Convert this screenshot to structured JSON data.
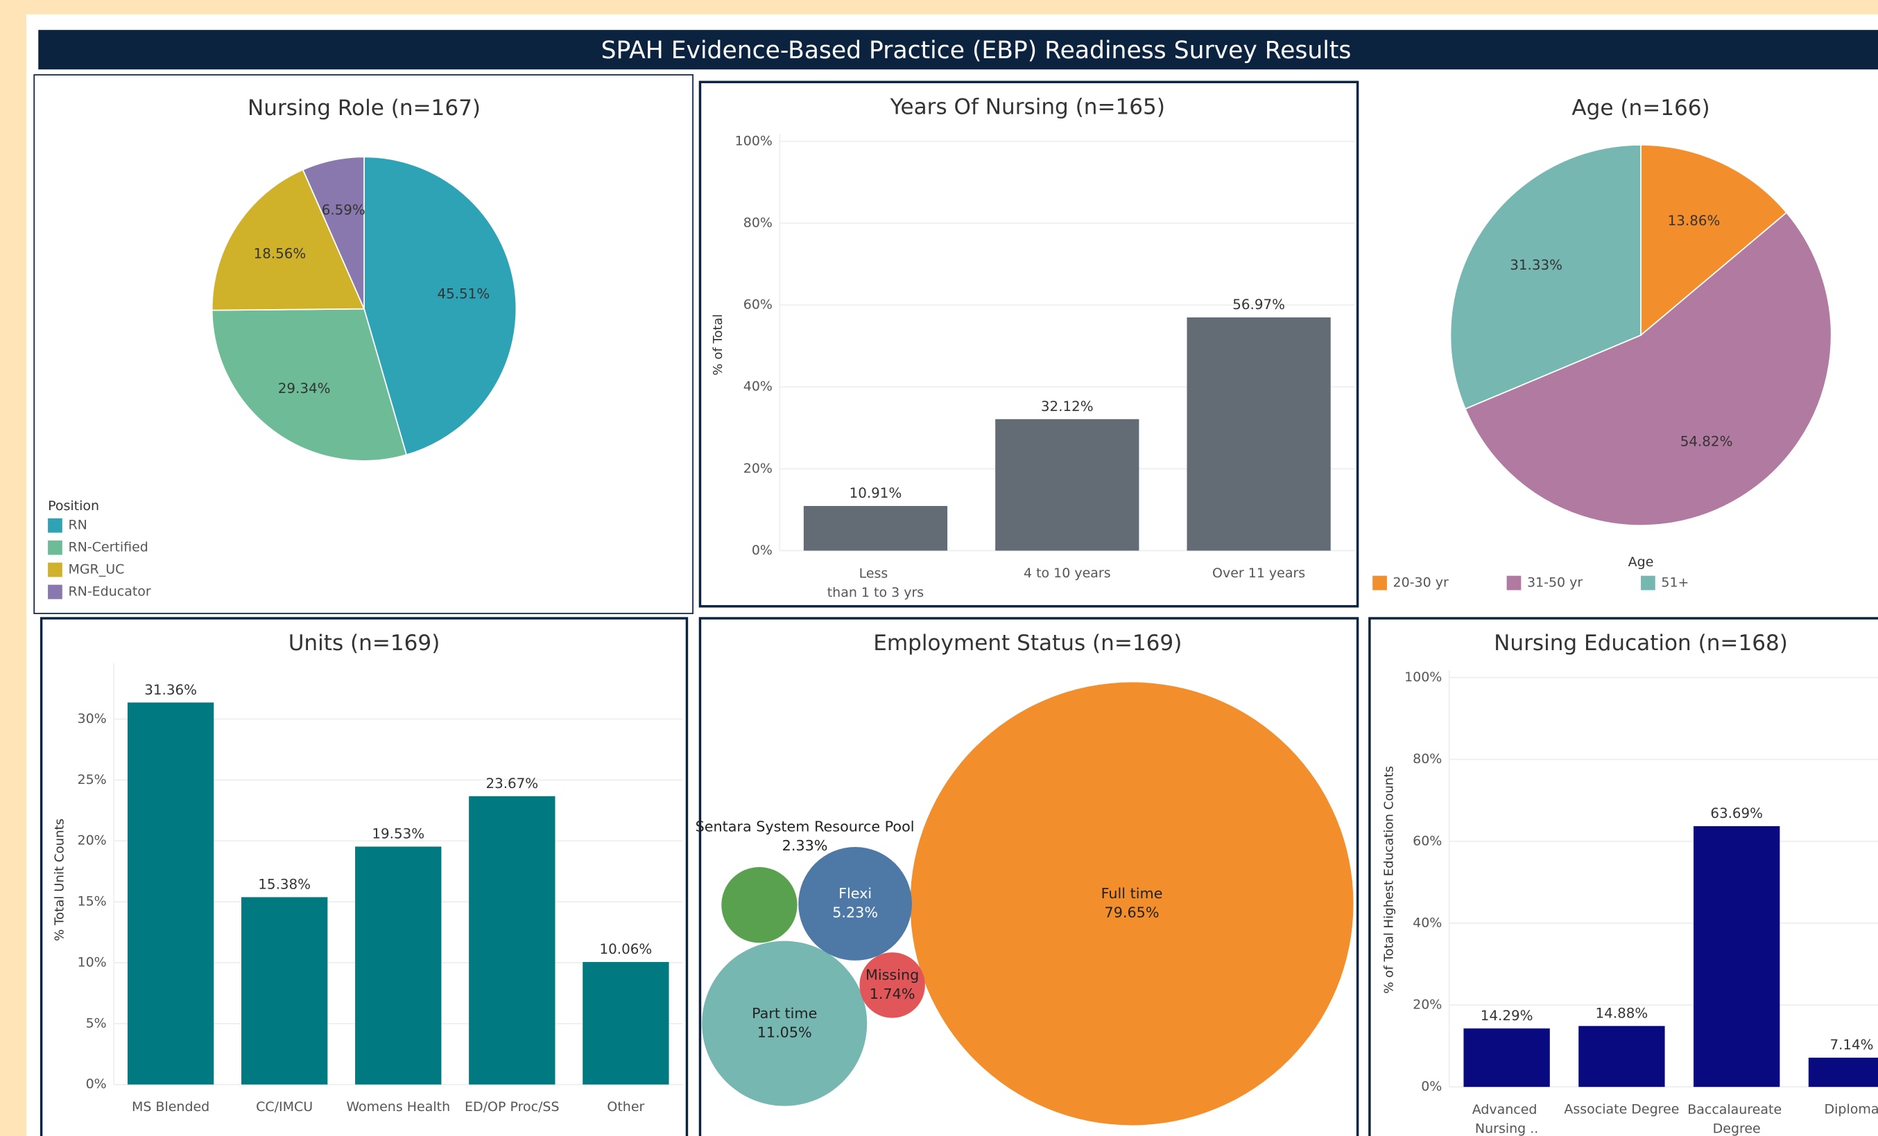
{
  "title": "SPAH Evidence-Based Practice (EBP) Readiness Survey Results",
  "chart_data": [
    {
      "type": "pie",
      "title": "Nursing Role (n=167)",
      "legend_title": "Position",
      "categories": [
        "RN",
        "RN-Certified",
        "MGR_UC",
        "RN-Educator"
      ],
      "values": [
        45.51,
        29.34,
        18.56,
        6.59
      ],
      "value_labels": [
        "45.51%",
        "29.34%",
        "18.56%",
        "6.59%"
      ],
      "colors": [
        "#2fa3b6",
        "#6dbb97",
        "#cfb22a",
        "#8878ad"
      ]
    },
    {
      "type": "bar",
      "title": "Years Of Nursing (n=165)",
      "y_label": "% of Total",
      "categories": [
        "Less than 1 to 3 yrs",
        "4 to 10 years",
        "Over 11 years"
      ],
      "values": [
        10.91,
        32.12,
        56.97
      ],
      "value_labels": [
        "10.91%",
        "32.12%",
        "56.97%"
      ],
      "color": "#636b75",
      "ylim": [
        0,
        100
      ],
      "yticks": [
        {
          "value": 0,
          "label": "0%"
        },
        {
          "value": 20,
          "label": "20%"
        },
        {
          "value": 40,
          "label": "40%"
        },
        {
          "value": 60,
          "label": "60%"
        },
        {
          "value": 80,
          "label": "80%"
        },
        {
          "value": 100,
          "label": "100%"
        }
      ],
      "grid": true
    },
    {
      "type": "pie",
      "title": "Age (n=166)",
      "legend_title": "Age",
      "categories": [
        "20-30 yr",
        "31-50 yr",
        "51+"
      ],
      "values": [
        13.86,
        54.82,
        31.33
      ],
      "value_labels": [
        "13.86%",
        "54.82%",
        "31.33%"
      ],
      "colors": [
        "#f28e2b",
        "#b07aa1",
        "#76b7b2"
      ]
    },
    {
      "type": "bar",
      "title": "Units (n=169)",
      "y_label": "% Total Unit Counts",
      "categories": [
        "MS Blended",
        "CC/IMCU",
        "Womens Health",
        "ED/OP Proc/SS",
        "Other"
      ],
      "values": [
        31.36,
        15.38,
        19.53,
        23.67,
        10.06
      ],
      "value_labels": [
        "31.36%",
        "15.38%",
        "19.53%",
        "23.67%",
        "10.06%"
      ],
      "color": "#007a80",
      "ylim": [
        0,
        34
      ],
      "yticks": [
        {
          "value": 0,
          "label": "0%"
        },
        {
          "value": 5,
          "label": "5%"
        },
        {
          "value": 10,
          "label": "10%"
        },
        {
          "value": 15,
          "label": "15%"
        },
        {
          "value": 20,
          "label": "20%"
        },
        {
          "value": 25,
          "label": "25%"
        },
        {
          "value": 30,
          "label": "30%"
        }
      ],
      "grid": true
    },
    {
      "type": "bubble",
      "title": "Employment Status (n=169)",
      "categories": [
        "Full time",
        "Part time",
        "Flexi",
        "Sentara System Resource Pool",
        "Missing"
      ],
      "values": [
        79.65,
        11.05,
        5.23,
        2.33,
        1.74
      ],
      "value_labels": [
        "79.65%",
        "11.05%",
        "5.23%",
        "2.33%",
        "1.74%"
      ],
      "colors": [
        "#f28e2b",
        "#76b7b2",
        "#4e79a7",
        "#59a14f",
        "#e15759"
      ]
    },
    {
      "type": "bar",
      "title": "Nursing Education (n=168)",
      "y_label": "% of Total Highest Education Counts",
      "categories": [
        "Advanced Nursing ..",
        "Associate Degree",
        "Baccalaureate Degree",
        "Diploma"
      ],
      "values": [
        14.29,
        14.88,
        63.69,
        7.14
      ],
      "value_labels": [
        "14.29%",
        "14.88%",
        "63.69%",
        "7.14%"
      ],
      "color": "#0a0a80",
      "ylim": [
        0,
        100
      ],
      "yticks": [
        {
          "value": 0,
          "label": "0%"
        },
        {
          "value": 20,
          "label": "20%"
        },
        {
          "value": 40,
          "label": "40%"
        },
        {
          "value": 60,
          "label": "60%"
        },
        {
          "value": 80,
          "label": "80%"
        },
        {
          "value": 100,
          "label": "100%"
        }
      ],
      "grid": true
    }
  ]
}
